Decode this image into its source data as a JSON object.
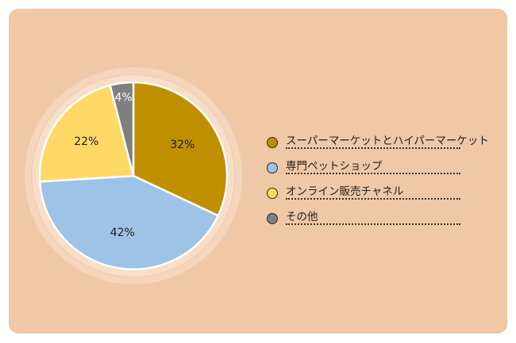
{
  "chart_data": {
    "type": "pie",
    "slices": [
      {
        "label": "スーパーマーケットとハイパーマーケット",
        "value": 32,
        "display": "32%",
        "color": "#bf8f00"
      },
      {
        "label": "専門ペットショップ",
        "value": 42,
        "display": "42%",
        "color": "#9dc3e6"
      },
      {
        "label": "オンライン販売チャネル",
        "value": 22,
        "display": "22%",
        "color": "#ffd966"
      },
      {
        "label": "その他",
        "value": 4,
        "display": "4%",
        "color": "#7f7f7f"
      }
    ],
    "legend_position": "right",
    "start_angle": "top",
    "direction": "clockwise"
  },
  "colors": {
    "background": "#f0c8a5",
    "ring_outer": "#f5d6bd",
    "ring_inner": "#f7dcc5",
    "slice_border": "#ffffff"
  }
}
